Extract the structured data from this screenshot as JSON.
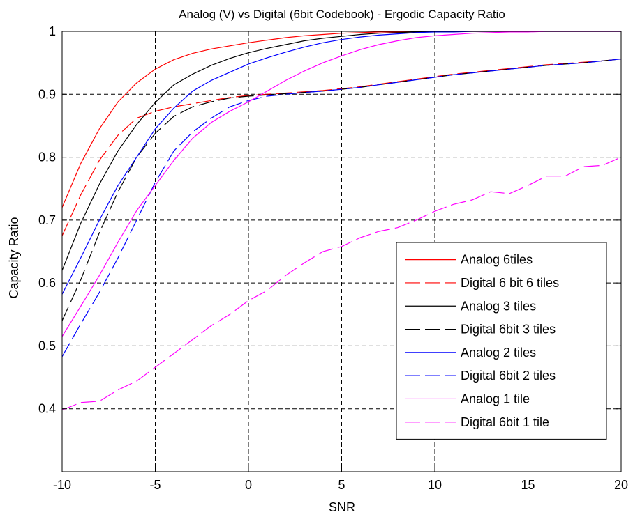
{
  "chart_data": {
    "type": "line",
    "title": "Analog (V) vs Digital (6bit Codebook) - Ergodic Capacity Ratio",
    "xlabel": "SNR",
    "ylabel": "Capacity Ratio",
    "xlim": [
      -10,
      20
    ],
    "ylim": [
      0.3,
      1.0
    ],
    "xticks": [
      -10,
      -5,
      0,
      5,
      10,
      15,
      20
    ],
    "yticks": [
      0.4,
      0.5,
      0.6,
      0.7,
      0.8,
      0.9,
      1
    ],
    "xtick_labels": [
      "-10",
      "-5",
      "0",
      "5",
      "10",
      "15",
      "20"
    ],
    "ytick_labels": [
      "0.4",
      "0.5",
      "0.6",
      "0.7",
      "0.8",
      "0.9",
      "1"
    ],
    "grid": true,
    "legend_position": "lower-right",
    "x": [
      -10,
      -9,
      -8,
      -7,
      -6,
      -5,
      -4,
      -3,
      -2,
      -1,
      0,
      1,
      2,
      3,
      4,
      5,
      6,
      7,
      8,
      9,
      10,
      11,
      12,
      13,
      14,
      15,
      16,
      17,
      18,
      19,
      20
    ],
    "series": [
      {
        "name": "Analog 6tiles",
        "color": "#ff0000",
        "dash": "solid",
        "values": [
          0.72,
          0.79,
          0.845,
          0.888,
          0.918,
          0.94,
          0.955,
          0.965,
          0.972,
          0.977,
          0.982,
          0.986,
          0.99,
          0.993,
          0.995,
          0.997,
          0.998,
          0.999,
          0.999,
          1.0,
          1.0,
          1.0,
          1.0,
          1.0,
          1.0,
          1.0,
          1.0,
          1.0,
          1.0,
          1.0,
          1.0
        ]
      },
      {
        "name": "Digital 6 bit 6 tiles",
        "color": "#ff0000",
        "dash": "dashed",
        "values": [
          0.675,
          0.74,
          0.795,
          0.835,
          0.862,
          0.873,
          0.88,
          0.885,
          0.89,
          0.895,
          0.898,
          0.9,
          0.902,
          0.904,
          0.906,
          0.909,
          0.912,
          0.916,
          0.92,
          0.924,
          0.928,
          0.932,
          0.935,
          0.938,
          0.941,
          0.944,
          0.947,
          0.949,
          0.951,
          0.953,
          0.956
        ]
      },
      {
        "name": "Analog 3 tiles",
        "color": "#000000",
        "dash": "solid",
        "values": [
          0.62,
          0.695,
          0.757,
          0.81,
          0.852,
          0.887,
          0.915,
          0.932,
          0.946,
          0.957,
          0.966,
          0.973,
          0.979,
          0.985,
          0.989,
          0.992,
          0.995,
          0.997,
          0.998,
          0.999,
          0.999,
          1.0,
          1.0,
          1.0,
          1.0,
          1.0,
          1.0,
          1.0,
          1.0,
          1.0,
          1.0
        ]
      },
      {
        "name": "Digital 6bit 3 tiles",
        "color": "#000000",
        "dash": "dashed",
        "values": [
          0.54,
          0.605,
          0.68,
          0.745,
          0.8,
          0.838,
          0.865,
          0.88,
          0.888,
          0.894,
          0.897,
          0.899,
          0.901,
          0.903,
          0.905,
          0.908,
          0.911,
          0.915,
          0.919,
          0.923,
          0.927,
          0.931,
          0.934,
          0.937,
          0.94,
          0.943,
          0.946,
          0.948,
          0.95,
          0.953,
          0.956
        ]
      },
      {
        "name": "Analog 2 tiles",
        "color": "#0000ff",
        "dash": "solid",
        "values": [
          0.582,
          0.64,
          0.7,
          0.755,
          0.8,
          0.845,
          0.878,
          0.905,
          0.922,
          0.935,
          0.948,
          0.958,
          0.967,
          0.975,
          0.982,
          0.987,
          0.991,
          0.994,
          0.996,
          0.998,
          0.999,
          0.999,
          1.0,
          1.0,
          1.0,
          1.0,
          1.0,
          1.0,
          1.0,
          1.0,
          1.0
        ]
      },
      {
        "name": "Digital 6bit 2 tiles",
        "color": "#0000ff",
        "dash": "dashed",
        "values": [
          0.483,
          0.535,
          0.585,
          0.64,
          0.7,
          0.76,
          0.81,
          0.84,
          0.862,
          0.88,
          0.89,
          0.897,
          0.9,
          0.903,
          0.905,
          0.908,
          0.911,
          0.915,
          0.919,
          0.923,
          0.927,
          0.931,
          0.934,
          0.937,
          0.94,
          0.943,
          0.946,
          0.948,
          0.95,
          0.953,
          0.956
        ]
      },
      {
        "name": "Analog 1 tile",
        "color": "#ff00ff",
        "dash": "solid",
        "values": [
          0.515,
          0.563,
          0.612,
          0.665,
          0.715,
          0.755,
          0.795,
          0.83,
          0.855,
          0.873,
          0.888,
          0.905,
          0.922,
          0.937,
          0.95,
          0.961,
          0.971,
          0.979,
          0.985,
          0.99,
          0.993,
          0.995,
          0.997,
          0.998,
          0.999,
          0.999,
          1.0,
          1.0,
          1.0,
          1.0,
          1.0
        ]
      },
      {
        "name": "Digital 6bit 1 tile",
        "color": "#ff00ff",
        "dash": "dashed",
        "values": [
          0.398,
          0.41,
          0.412,
          0.43,
          0.444,
          0.466,
          0.488,
          0.51,
          0.532,
          0.55,
          0.572,
          0.588,
          0.612,
          0.632,
          0.65,
          0.658,
          0.672,
          0.682,
          0.688,
          0.7,
          0.714,
          0.725,
          0.732,
          0.745,
          0.742,
          0.755,
          0.77,
          0.77,
          0.785,
          0.787,
          0.8
        ]
      }
    ]
  }
}
